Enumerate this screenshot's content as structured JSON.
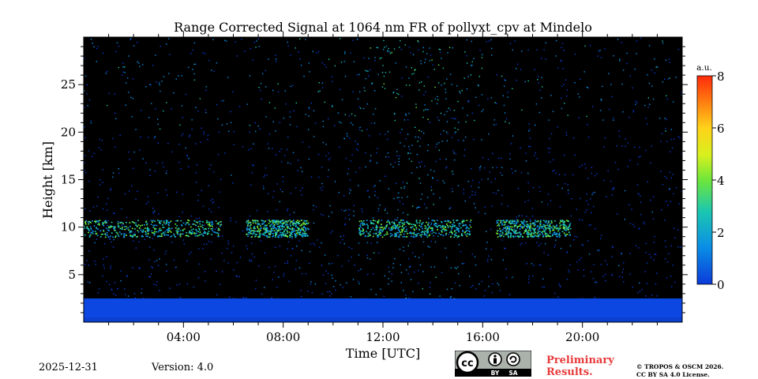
{
  "chart_data": {
    "type": "heatmap",
    "title": "Range Corrected Signal at 1064 nm FR of pollyxt_cpv at Mindelo",
    "xlabel": "Time [UTC]",
    "ylabel": "Height [km]",
    "xlim": [
      0,
      24
    ],
    "ylim": [
      0,
      30
    ],
    "x_ticks": [
      {
        "value": 4,
        "label": "04:00"
      },
      {
        "value": 8,
        "label": "08:00"
      },
      {
        "value": 12,
        "label": "12:00"
      },
      {
        "value": 16,
        "label": "16:00"
      },
      {
        "value": 20,
        "label": "20:00"
      }
    ],
    "y_ticks": [
      {
        "value": 5,
        "label": "5"
      },
      {
        "value": 10,
        "label": "10"
      },
      {
        "value": 15,
        "label": "15"
      },
      {
        "value": 20,
        "label": "20"
      },
      {
        "value": 25,
        "label": "25"
      }
    ],
    "colorbar": {
      "unit": "a.u.",
      "range": [
        0,
        8
      ],
      "ticks": [
        {
          "value": 0,
          "label": "0"
        },
        {
          "value": 2,
          "label": "2"
        },
        {
          "value": 4,
          "label": "4"
        },
        {
          "value": 6,
          "label": "6"
        },
        {
          "value": 8,
          "label": "8"
        }
      ]
    },
    "features": {
      "boundary_layer_top_km": 2.5,
      "cirrus_layer_km": [
        9.0,
        10.8
      ],
      "cirrus_segments_hours": [
        [
          0,
          5.5
        ],
        [
          6.5,
          9
        ],
        [
          11,
          15.5
        ],
        [
          16.5,
          19.5
        ]
      ]
    }
  },
  "footer": {
    "date": "2025-12-31",
    "version": "Version: 4.0",
    "preliminary_line1": "Preliminary",
    "preliminary_line2": "Results.",
    "copyright_line1": "© TROPOS & OSCM 2026.",
    "copyright_line2": "CC BY SA 4.0 License.",
    "license_by": "BY",
    "license_sa": "SA",
    "license_cc": "cc"
  },
  "colors": {
    "background": "#000000",
    "accent_red": "#e83a3a"
  }
}
